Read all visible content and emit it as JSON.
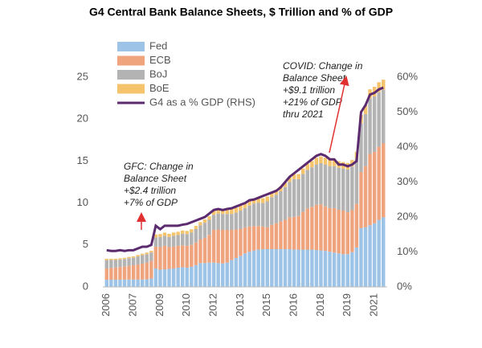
{
  "chart_data": {
    "type": "bar",
    "stacked": true,
    "title": "G4 Central Bank Balance Sheets, $ Trillion and % of GDP",
    "categories": [
      "2006",
      null,
      null,
      null,
      null,
      null,
      "2007",
      null,
      null,
      null,
      null,
      null,
      "2009",
      null,
      null,
      null,
      null,
      null,
      "2010",
      null,
      null,
      null,
      null,
      null,
      "2012",
      null,
      null,
      null,
      null,
      null,
      "2013",
      null,
      null,
      null,
      null,
      null,
      "2015",
      null,
      null,
      null,
      null,
      null,
      "2016",
      null,
      null,
      null,
      null,
      null,
      "2018",
      null,
      null,
      null,
      null,
      null,
      "2019",
      null,
      null,
      null,
      null,
      null,
      "2021",
      null,
      null
    ],
    "series": [
      {
        "name": "Fed",
        "color": "#9dc3e6",
        "values": [
          0.85,
          0.86,
          0.86,
          0.87,
          0.87,
          0.88,
          0.88,
          0.88,
          0.88,
          0.9,
          1.0,
          2.2,
          2.05,
          2.1,
          2.15,
          2.2,
          2.3,
          2.35,
          2.3,
          2.4,
          2.6,
          2.85,
          2.85,
          2.9,
          2.9,
          2.85,
          2.8,
          2.9,
          3.2,
          3.45,
          3.7,
          4.0,
          4.2,
          4.35,
          4.45,
          4.5,
          4.5,
          4.5,
          4.5,
          4.5,
          4.5,
          4.5,
          4.45,
          4.45,
          4.45,
          4.45,
          4.45,
          4.4,
          4.35,
          4.3,
          4.2,
          4.1,
          4.0,
          3.9,
          3.9,
          4.15,
          4.7,
          7.0,
          7.1,
          7.35,
          7.6,
          8.0,
          8.3
        ]
      },
      {
        "name": "ECB",
        "color": "#f0a47e",
        "values": [
          1.35,
          1.4,
          1.45,
          1.5,
          1.55,
          1.65,
          1.7,
          1.8,
          1.9,
          2.0,
          2.1,
          2.6,
          2.7,
          2.8,
          2.6,
          2.6,
          2.6,
          2.6,
          2.6,
          2.6,
          2.7,
          2.8,
          3.0,
          3.3,
          3.9,
          4.0,
          4.0,
          3.9,
          3.6,
          3.4,
          3.2,
          3.1,
          3.0,
          2.9,
          2.8,
          2.7,
          2.6,
          2.9,
          3.1,
          3.3,
          3.5,
          3.8,
          3.9,
          4.0,
          4.5,
          4.9,
          5.1,
          5.4,
          5.5,
          5.3,
          5.2,
          5.3,
          5.2,
          5.2,
          5.0,
          5.0,
          5.2,
          6.7,
          7.3,
          8.5,
          8.5,
          8.7,
          8.8
        ]
      },
      {
        "name": "BoJ",
        "color": "#b3b3b3",
        "values": [
          1.0,
          0.95,
          0.9,
          0.9,
          0.9,
          0.9,
          0.9,
          0.95,
          1.0,
          1.0,
          1.0,
          1.1,
          1.2,
          1.2,
          1.2,
          1.3,
          1.3,
          1.4,
          1.4,
          1.5,
          1.6,
          1.7,
          1.8,
          1.8,
          1.8,
          1.9,
          1.9,
          1.9,
          1.9,
          2.0,
          2.2,
          2.3,
          2.5,
          2.7,
          2.8,
          2.8,
          3.1,
          3.3,
          3.4,
          3.6,
          3.9,
          4.2,
          4.5,
          4.4,
          4.5,
          4.6,
          4.7,
          4.8,
          4.9,
          5.0,
          5.0,
          5.0,
          5.0,
          5.0,
          5.1,
          5.2,
          5.4,
          5.8,
          6.2,
          6.6,
          6.6,
          6.5,
          6.4
        ]
      },
      {
        "name": "BoE",
        "color": "#f5c36c",
        "values": [
          0.15,
          0.15,
          0.15,
          0.15,
          0.15,
          0.15,
          0.16,
          0.18,
          0.18,
          0.2,
          0.2,
          0.35,
          0.35,
          0.37,
          0.38,
          0.38,
          0.37,
          0.37,
          0.37,
          0.37,
          0.37,
          0.37,
          0.4,
          0.42,
          0.48,
          0.5,
          0.55,
          0.6,
          0.6,
          0.6,
          0.6,
          0.6,
          0.6,
          0.6,
          0.6,
          0.58,
          0.58,
          0.58,
          0.58,
          0.58,
          0.55,
          0.55,
          0.6,
          0.6,
          0.65,
          0.7,
          0.75,
          0.8,
          0.8,
          0.8,
          0.8,
          0.78,
          0.78,
          0.78,
          0.78,
          0.78,
          0.8,
          1.0,
          1.05,
          1.1,
          1.15,
          1.2,
          1.2
        ]
      },
      {
        "name": "G4 as a % GDP (RHS)",
        "color": "#5c2a6e",
        "type": "line",
        "axis": "y2",
        "values": [
          10.5,
          10.3,
          10.3,
          10.5,
          10.3,
          10.5,
          10.5,
          11.0,
          11.5,
          11.5,
          12.0,
          17.5,
          16.5,
          17.5,
          17.5,
          17.5,
          17.5,
          17.8,
          18.0,
          18.5,
          19.0,
          19.5,
          20.0,
          21.0,
          22.0,
          22.3,
          22.0,
          22.3,
          22.5,
          23.0,
          23.5,
          24.0,
          24.8,
          25.0,
          25.5,
          26.0,
          26.5,
          27.0,
          27.5,
          28.5,
          30.0,
          31.5,
          32.5,
          33.5,
          34.5,
          35.5,
          36.5,
          37.5,
          38.0,
          37.5,
          36.5,
          36.5,
          35.0,
          35.0,
          34.5,
          35.0,
          36.0,
          50.0,
          52.0,
          55.0,
          55.5,
          56.5,
          57.0
        ]
      }
    ],
    "ylim": [
      0,
      25
    ],
    "yticks": [
      0,
      5,
      10,
      15,
      20,
      25
    ],
    "y2lim": [
      0,
      60
    ],
    "y2ticks": [
      {
        "value": 0,
        "label": "0%"
      },
      {
        "value": 10,
        "label": "10%"
      },
      {
        "value": 20,
        "label": "20%"
      },
      {
        "value": 30,
        "label": "30%"
      },
      {
        "value": 40,
        "label": "40%"
      },
      {
        "value": 50,
        "label": "50%"
      },
      {
        "value": 60,
        "label": "60%"
      }
    ],
    "grid": false,
    "legend": "upper left",
    "annotations": [
      [
        "GFC: Change in",
        "Balance Sheet",
        "+$2.4 trillion",
        "+7% of GDP"
      ],
      [
        "COVID: Change in",
        "Balance Sheet",
        "+$9.1 trillion",
        "+21% of GDP",
        "thru 2021"
      ]
    ]
  }
}
